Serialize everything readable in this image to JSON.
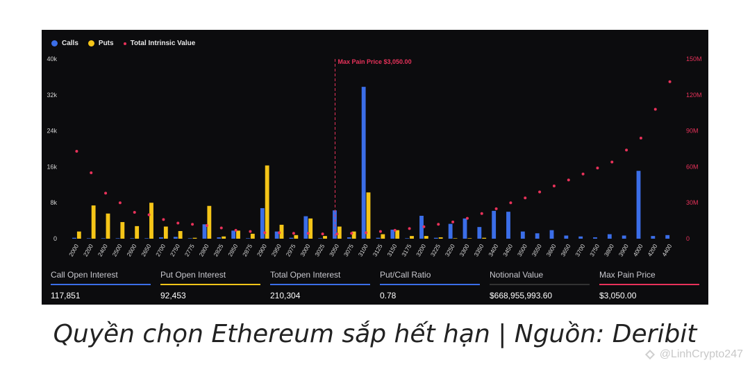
{
  "chart_data": {
    "type": "bar",
    "legend": [
      {
        "name": "Calls",
        "color": "#3b6ee8",
        "shape": "dot"
      },
      {
        "name": "Puts",
        "color": "#f5c518",
        "shape": "dot"
      },
      {
        "name": "Total Intrinsic Value",
        "color": "#e8325a",
        "shape": "small-dot"
      }
    ],
    "legend_position": "top-left",
    "categories": [
      "2000",
      "2200",
      "2400",
      "2500",
      "2600",
      "2650",
      "2700",
      "2750",
      "2775",
      "2800",
      "2825",
      "2850",
      "2875",
      "2900",
      "2950",
      "2975",
      "3000",
      "3025",
      "3050",
      "3075",
      "3100",
      "3125",
      "3150",
      "3175",
      "3200",
      "3225",
      "3250",
      "3300",
      "3350",
      "3400",
      "3450",
      "3500",
      "3550",
      "3600",
      "3650",
      "3700",
      "3750",
      "3800",
      "3900",
      "4000",
      "4200",
      "4400"
    ],
    "series": [
      {
        "name": "Calls",
        "color": "#3b6ee8",
        "axis": "left",
        "values": [
          200,
          100,
          100,
          100,
          100,
          100,
          300,
          400,
          100,
          3200,
          300,
          1800,
          100,
          6800,
          1600,
          200,
          5000,
          100,
          6300,
          300,
          33800,
          200,
          2000,
          100,
          5100,
          200,
          3300,
          4500,
          2600,
          6200,
          6000,
          1600,
          1200,
          1900,
          700,
          500,
          300,
          1000,
          700,
          15100,
          600,
          800
        ]
      },
      {
        "name": "Puts",
        "color": "#f5c518",
        "axis": "left",
        "values": [
          1600,
          7400,
          5600,
          3700,
          2800,
          8000,
          2700,
          1700,
          200,
          7300,
          500,
          1800,
          1100,
          16300,
          3100,
          800,
          4500,
          600,
          2700,
          1600,
          10300,
          1000,
          1900,
          600,
          600,
          300,
          100,
          100,
          200,
          0,
          0,
          0,
          0,
          0,
          0,
          0,
          0,
          0,
          0,
          0,
          0,
          0
        ]
      },
      {
        "name": "Total Intrinsic Value",
        "color": "#e8325a",
        "axis": "right",
        "type": "scatter",
        "values": [
          73000000,
          55000000,
          38000000,
          30000000,
          22000000,
          20000000,
          16000000,
          13000000,
          12000000,
          11000000,
          9000000,
          7000000,
          6000000,
          5000000,
          5000000,
          4500000,
          4500000,
          4000000,
          4000000,
          4500000,
          5000000,
          6000000,
          7000000,
          8500000,
          10000000,
          12000000,
          14000000,
          17000000,
          21000000,
          25000000,
          30000000,
          34000000,
          39000000,
          44000000,
          49000000,
          54000000,
          59000000,
          64000000,
          74000000,
          84000000,
          108000000,
          131000000
        ]
      }
    ],
    "y_left": {
      "ticks": [
        "0",
        "8k",
        "16k",
        "24k",
        "32k",
        "40k"
      ],
      "range": [
        0,
        40000
      ]
    },
    "y_right": {
      "ticks": [
        "0",
        "30M",
        "60M",
        "90M",
        "120M",
        "150M"
      ],
      "range": [
        0,
        150000000
      ]
    },
    "annotation": {
      "label": "Max Pain Price $3,050.00",
      "category": "3050",
      "color": "#e8325a"
    }
  },
  "stats": [
    {
      "label": "Call Open Interest",
      "value": "117,851",
      "color": "#3b6ee8"
    },
    {
      "label": "Put Open Interest",
      "value": "92,453",
      "color": "#f5c518"
    },
    {
      "label": "Total Open Interest",
      "value": "210,304",
      "color": "#3b6ee8"
    },
    {
      "label": "Put/Call Ratio",
      "value": "0.78",
      "color": "#3b6ee8"
    },
    {
      "label": "Notional Value",
      "value": "$668,955,993.60",
      "color": "#333333"
    },
    {
      "label": "Max Pain Price",
      "value": "$3,050.00",
      "color": "#e8325a"
    }
  ],
  "caption": "Quyền chọn Ethereum sắp hết hạn | Nguồn: Deribit",
  "watermark": "@LinhCrypto247"
}
